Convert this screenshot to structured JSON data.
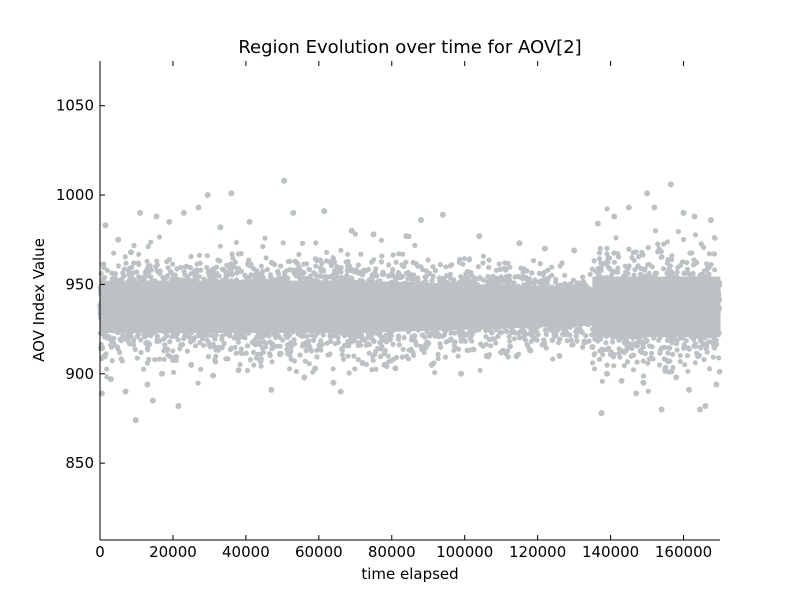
{
  "chart_data": {
    "type": "scatter",
    "title": "Region Evolution over time for AOV[2]",
    "xlabel": "time elapsed",
    "ylabel": "AOV Index Value",
    "xlim": [
      0,
      170000
    ],
    "ylim": [
      807,
      1075
    ],
    "xticks": [
      0,
      20000,
      40000,
      60000,
      80000,
      100000,
      120000,
      140000,
      160000
    ],
    "yticks": [
      850,
      900,
      950,
      1000,
      1050
    ],
    "grid": false,
    "marker_color": "#bcc1c4",
    "series": [
      {
        "values": [
          {
            "x": 500,
            "y": 889
          },
          {
            "x": 1500,
            "y": 983
          },
          {
            "x": 3000,
            "y": 897
          },
          {
            "x": 5000,
            "y": 975
          },
          {
            "x": 7000,
            "y": 890
          },
          {
            "x": 8500,
            "y": 968
          },
          {
            "x": 9800,
            "y": 874
          },
          {
            "x": 11000,
            "y": 990
          },
          {
            "x": 13000,
            "y": 894
          },
          {
            "x": 14500,
            "y": 885
          },
          {
            "x": 15500,
            "y": 988
          },
          {
            "x": 17000,
            "y": 900
          },
          {
            "x": 19000,
            "y": 985
          },
          {
            "x": 21500,
            "y": 882
          },
          {
            "x": 23000,
            "y": 990
          },
          {
            "x": 25000,
            "y": 905
          },
          {
            "x": 27000,
            "y": 993
          },
          {
            "x": 29500,
            "y": 1000
          },
          {
            "x": 31000,
            "y": 899
          },
          {
            "x": 33000,
            "y": 982
          },
          {
            "x": 36000,
            "y": 1001
          },
          {
            "x": 38000,
            "y": 902
          },
          {
            "x": 41000,
            "y": 985
          },
          {
            "x": 44000,
            "y": 907
          },
          {
            "x": 47000,
            "y": 891
          },
          {
            "x": 50500,
            "y": 1008
          },
          {
            "x": 53000,
            "y": 990
          },
          {
            "x": 56000,
            "y": 898
          },
          {
            "x": 59000,
            "y": 903
          },
          {
            "x": 61500,
            "y": 991
          },
          {
            "x": 64000,
            "y": 895
          },
          {
            "x": 66000,
            "y": 890
          },
          {
            "x": 69000,
            "y": 980
          },
          {
            "x": 72000,
            "y": 906
          },
          {
            "x": 75000,
            "y": 978
          },
          {
            "x": 78000,
            "y": 905
          },
          {
            "x": 81000,
            "y": 903
          },
          {
            "x": 84000,
            "y": 977
          },
          {
            "x": 88000,
            "y": 986
          },
          {
            "x": 91000,
            "y": 905
          },
          {
            "x": 94000,
            "y": 989
          },
          {
            "x": 99000,
            "y": 900
          },
          {
            "x": 104000,
            "y": 977
          },
          {
            "x": 106000,
            "y": 910
          },
          {
            "x": 110000,
            "y": 912
          },
          {
            "x": 115000,
            "y": 973
          },
          {
            "x": 118000,
            "y": 913
          },
          {
            "x": 122000,
            "y": 970
          },
          {
            "x": 126000,
            "y": 910
          },
          {
            "x": 130000,
            "y": 969
          },
          {
            "x": 135000,
            "y": 915
          },
          {
            "x": 136500,
            "y": 984
          },
          {
            "x": 137500,
            "y": 878
          },
          {
            "x": 139000,
            "y": 900
          },
          {
            "x": 141000,
            "y": 988
          },
          {
            "x": 143000,
            "y": 896
          },
          {
            "x": 145000,
            "y": 993
          },
          {
            "x": 147000,
            "y": 889
          },
          {
            "x": 149000,
            "y": 895
          },
          {
            "x": 150000,
            "y": 1001
          },
          {
            "x": 152000,
            "y": 993
          },
          {
            "x": 154000,
            "y": 880
          },
          {
            "x": 155000,
            "y": 903
          },
          {
            "x": 156500,
            "y": 1006
          },
          {
            "x": 158000,
            "y": 898
          },
          {
            "x": 160000,
            "y": 990
          },
          {
            "x": 161500,
            "y": 891
          },
          {
            "x": 163000,
            "y": 988
          },
          {
            "x": 164500,
            "y": 880
          },
          {
            "x": 166000,
            "y": 882
          },
          {
            "x": 167500,
            "y": 986
          },
          {
            "x": 169000,
            "y": 894
          }
        ]
      }
    ]
  }
}
